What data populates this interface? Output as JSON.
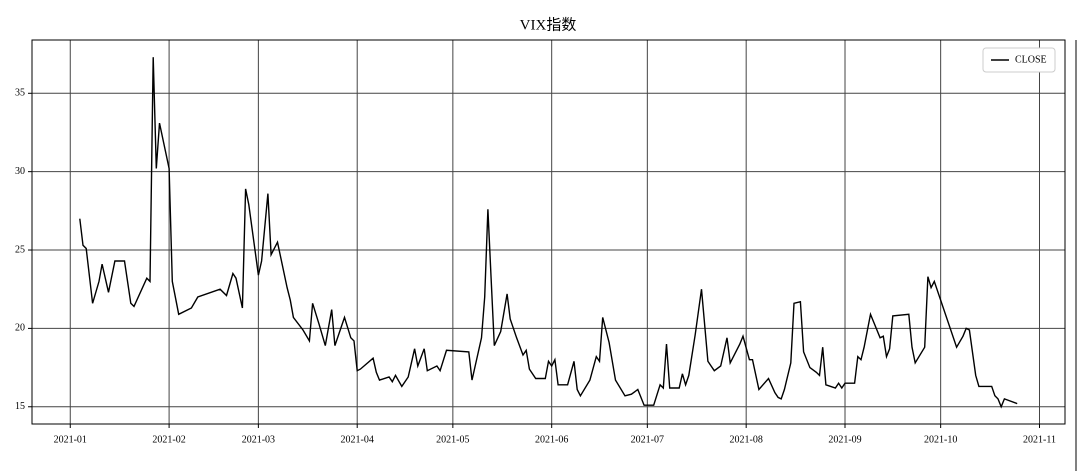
{
  "chart_data": {
    "type": "line",
    "title": "VIX指数",
    "x": [
      3,
      4,
      5,
      7,
      9,
      10,
      12,
      14,
      17,
      19,
      20,
      24,
      25,
      26,
      27,
      28,
      31,
      32,
      34,
      38,
      40,
      47,
      49,
      51,
      52,
      54,
      55,
      56,
      59,
      60,
      62,
      63,
      65,
      68,
      69,
      70,
      73,
      75,
      76,
      78,
      80,
      82,
      83,
      86,
      88,
      89,
      90,
      91,
      95,
      96,
      97,
      100,
      101,
      102,
      104,
      106,
      108,
      109,
      111,
      112,
      115,
      116,
      118,
      125,
      126,
      129,
      130,
      131,
      132,
      133,
      135,
      137,
      138,
      140,
      142,
      143,
      144,
      146,
      149,
      150,
      151,
      152,
      153,
      156,
      158,
      159,
      160,
      163,
      165,
      166,
      167,
      169,
      171,
      174,
      176,
      178,
      180,
      183,
      185,
      186,
      187,
      188,
      191,
      192,
      193,
      194,
      196,
      198,
      200,
      201,
      202,
      204,
      206,
      207,
      210,
      211,
      213,
      214,
      216,
      219,
      221,
      222,
      223,
      224,
      226,
      227,
      229,
      230,
      232,
      234,
      235,
      236,
      237,
      240,
      241,
      242,
      243,
      246,
      247,
      248,
      249,
      251,
      252,
      254,
      255,
      256,
      257,
      258,
      263,
      264,
      265,
      268,
      269,
      270,
      271,
      278,
      280,
      281,
      282,
      284,
      285,
      289,
      290,
      291,
      292,
      293,
      297
    ],
    "series": [
      {
        "name": "CLOSE",
        "color": "#000000",
        "values": [
          27.0,
          25.3,
          25.1,
          21.6,
          23.0,
          24.1,
          22.3,
          24.3,
          24.3,
          21.6,
          21.4,
          23.2,
          23.0,
          37.3,
          30.2,
          33.1,
          30.2,
          23.0,
          20.9,
          21.3,
          22.0,
          22.5,
          22.1,
          23.5,
          23.2,
          21.3,
          28.9,
          27.9,
          23.4,
          24.3,
          28.6,
          24.7,
          25.5,
          22.6,
          21.8,
          20.7,
          19.9,
          19.2,
          21.6,
          20.3,
          18.9,
          21.2,
          18.9,
          20.7,
          19.4,
          19.2,
          17.3,
          17.4,
          18.1,
          17.2,
          16.7,
          16.9,
          16.6,
          17.0,
          16.3,
          16.9,
          18.7,
          17.6,
          18.7,
          17.3,
          17.6,
          17.3,
          18.6,
          18.5,
          16.7,
          19.4,
          22.0,
          27.6,
          23.2,
          18.9,
          19.8,
          22.2,
          20.6,
          19.4,
          18.3,
          18.6,
          17.4,
          16.8,
          16.8,
          17.9,
          17.6,
          18.0,
          16.4,
          16.4,
          17.9,
          16.1,
          15.7,
          16.7,
          18.2,
          17.9,
          20.7,
          19.1,
          16.7,
          15.7,
          15.8,
          16.1,
          15.1,
          15.1,
          16.4,
          16.2,
          19.0,
          16.2,
          16.2,
          17.1,
          16.4,
          17.0,
          19.6,
          22.5,
          17.9,
          17.6,
          17.3,
          17.6,
          19.4,
          17.8,
          19.0,
          19.5,
          18.0,
          18.0,
          16.1,
          16.8,
          15.9,
          15.6,
          15.5,
          16.1,
          17.8,
          21.6,
          21.7,
          18.5,
          17.5,
          17.2,
          17.0,
          18.8,
          16.4,
          16.2,
          16.5,
          16.2,
          16.5,
          16.5,
          18.2,
          18.0,
          18.8,
          20.9,
          20.4,
          19.4,
          19.5,
          18.2,
          18.7,
          20.8,
          20.9,
          18.8,
          17.8,
          18.8,
          23.3,
          22.6,
          23.0,
          18.8,
          19.5,
          20.0,
          19.9,
          17.0,
          16.3,
          16.3,
          15.7,
          15.5,
          15.0,
          15.5,
          15.2
        ]
      }
    ],
    "xlim": [
      -12,
      312
    ],
    "xticks": [
      {
        "value": 0,
        "label": "2021-01"
      },
      {
        "value": 31,
        "label": "2021-02"
      },
      {
        "value": 59,
        "label": "2021-03"
      },
      {
        "value": 90,
        "label": "2021-04"
      },
      {
        "value": 120,
        "label": "2021-05"
      },
      {
        "value": 151,
        "label": "2021-06"
      },
      {
        "value": 181,
        "label": "2021-07"
      },
      {
        "value": 212,
        "label": "2021-08"
      },
      {
        "value": 243,
        "label": "2021-09"
      },
      {
        "value": 273,
        "label": "2021-10"
      },
      {
        "value": 304,
        "label": "2021-11"
      }
    ],
    "ylim": [
      13.9,
      38.4
    ],
    "yticks": [
      15,
      20,
      25,
      30,
      35
    ],
    "grid": true,
    "legend": "upper right"
  }
}
